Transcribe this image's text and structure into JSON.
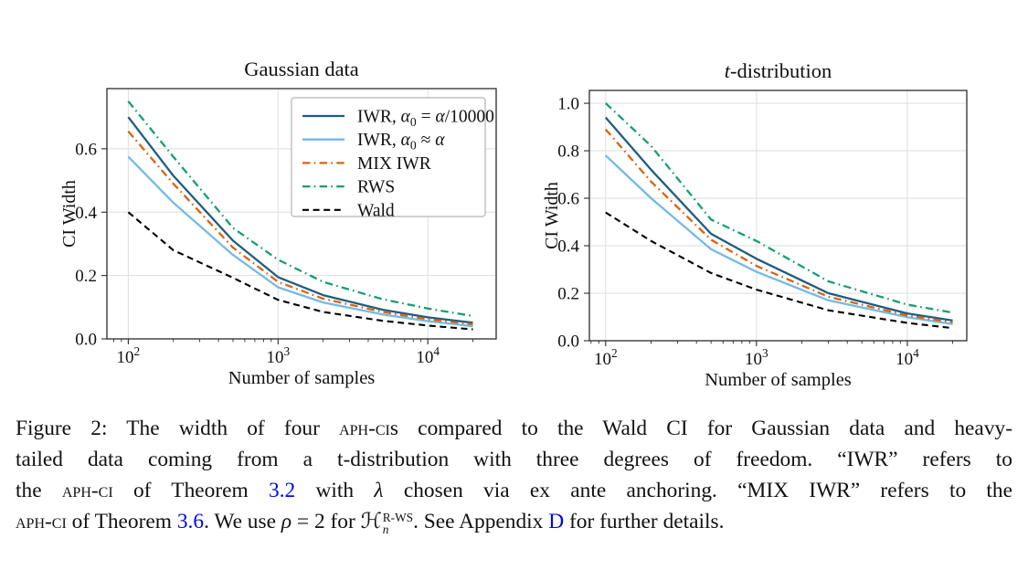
{
  "figure_label": "Figure 2",
  "caption": {
    "link_color": "#0008e6",
    "lines": [
      [
        {
          "t": "Figure 2: The width of four "
        },
        {
          "t": "aph-ci",
          "style": "sc"
        },
        {
          "t": "s compared to the Wald CI for Gaussian data and heavy-"
        }
      ],
      [
        {
          "t": "tailed data coming from a t-distribution with three degrees of freedom.  “IWR” refers to"
        }
      ],
      [
        {
          "t": "the "
        },
        {
          "t": "aph-ci",
          "style": "sc"
        },
        {
          "t": " of Theorem "
        },
        {
          "t": "3.2",
          "style": "link",
          "name": "theorem-3-2-link"
        },
        {
          "t": " with "
        },
        {
          "t": "λ",
          "style": "it"
        },
        {
          "t": " chosen via ex ante anchoring.  “MIX IWR” refers to the"
        }
      ],
      [
        {
          "t": "aph-ci",
          "style": "sc"
        },
        {
          "t": " of Theorem "
        },
        {
          "t": "3.6",
          "style": "link",
          "name": "theorem-3-6-link"
        },
        {
          "t": ". We use "
        },
        {
          "t": "ρ",
          "style": "it"
        },
        {
          "t": " = 2 for "
        },
        {
          "t": "ℋ"
        },
        {
          "t": "R-WS|n",
          "style": "stack"
        },
        {
          "t": ". See Appendix "
        },
        {
          "t": "D",
          "style": "link",
          "name": "appendix-d-link"
        },
        {
          "t": " for further details."
        }
      ]
    ]
  },
  "chart_data": [
    {
      "type": "line",
      "title_segments": [
        {
          "t": "Gaussian data"
        }
      ],
      "xlabel": "Number of samples",
      "ylabel": "CI Width",
      "x_scale": "log",
      "grid": true,
      "xlim": [
        72,
        28600
      ],
      "ylim": [
        0,
        0.79
      ],
      "xticks": [
        {
          "v": 100,
          "label": "10^2"
        },
        {
          "v": 1000,
          "label": "10^3"
        },
        {
          "v": 10000,
          "label": "10^4"
        }
      ],
      "yticks": [
        0.0,
        0.2,
        0.4,
        0.6
      ],
      "legend": {
        "show": true,
        "position": "upper right"
      },
      "x": [
        100,
        200,
        500,
        1000,
        2000,
        5000,
        10000,
        20000
      ],
      "series": [
        {
          "key": "iwr-dark",
          "dash": "solid",
          "color": "#1f5d80",
          "width": 2.3,
          "label_segments": [
            {
              "t": "IWR, "
            },
            {
              "t": "α",
              "it": 1
            },
            {
              "t": "0",
              "sub": 1
            },
            {
              "t": " = "
            },
            {
              "t": "α",
              "it": 1
            },
            {
              "t": "/10000"
            }
          ],
          "values": [
            0.7,
            0.515,
            0.31,
            0.195,
            0.138,
            0.092,
            0.068,
            0.051
          ]
        },
        {
          "key": "iwr-light",
          "dash": "solid",
          "color": "#74b9e9",
          "width": 2.3,
          "label_segments": [
            {
              "t": "IWR, "
            },
            {
              "t": "α",
              "it": 1
            },
            {
              "t": "0",
              "sub": 1
            },
            {
              "t": " ≈ "
            },
            {
              "t": "α",
              "it": 1
            }
          ],
          "values": [
            0.575,
            0.43,
            0.265,
            0.163,
            0.115,
            0.077,
            0.056,
            0.04
          ]
        },
        {
          "key": "mix-iwr",
          "dash": "dashdot",
          "color": "#d9640d",
          "width": 2.3,
          "label_segments": [
            {
              "t": "MIX IWR"
            }
          ],
          "values": [
            0.655,
            0.49,
            0.288,
            0.18,
            0.127,
            0.085,
            0.062,
            0.046
          ]
        },
        {
          "key": "rws",
          "dash": "dashdot",
          "color": "#189e73",
          "width": 2.3,
          "label_segments": [
            {
              "t": "RWS"
            }
          ],
          "values": [
            0.75,
            0.575,
            0.35,
            0.25,
            0.18,
            0.125,
            0.096,
            0.072
          ]
        },
        {
          "key": "wald",
          "dash": "dashed",
          "color": "#000000",
          "width": 2.1,
          "label_segments": [
            {
              "t": "Wald"
            }
          ],
          "values": [
            0.4,
            0.28,
            0.193,
            0.123,
            0.085,
            0.057,
            0.042,
            0.03
          ]
        }
      ]
    },
    {
      "type": "line",
      "title_segments": [
        {
          "t": "t",
          "it": 1
        },
        {
          "t": "-distribution"
        }
      ],
      "xlabel": "Number of samples",
      "ylabel": "CI Width",
      "x_scale": "log",
      "grid": true,
      "xlim": [
        78,
        24800
      ],
      "ylim": [
        0,
        1.054
      ],
      "xticks": [
        {
          "v": 100,
          "label": "10^2"
        },
        {
          "v": 1000,
          "label": "10^3"
        },
        {
          "v": 10000,
          "label": "10^4"
        }
      ],
      "yticks": [
        0.0,
        0.2,
        0.4,
        0.6,
        0.8,
        1.0
      ],
      "legend": {
        "show": false
      },
      "x": [
        100,
        200,
        500,
        1000,
        3000,
        10000,
        20000
      ],
      "series": [
        {
          "key": "iwr-dark",
          "dash": "solid",
          "color": "#1f5d80",
          "width": 2.3,
          "label_segments": [
            {
              "t": "IWR, "
            },
            {
              "t": "α",
              "it": 1
            },
            {
              "t": "0",
              "sub": 1
            },
            {
              "t": " = "
            },
            {
              "t": "α",
              "it": 1
            },
            {
              "t": "/10000"
            }
          ],
          "values": [
            0.94,
            0.72,
            0.45,
            0.345,
            0.2,
            0.115,
            0.085
          ]
        },
        {
          "key": "iwr-light",
          "dash": "solid",
          "color": "#74b9e9",
          "width": 2.3,
          "label_segments": [
            {
              "t": "IWR, "
            },
            {
              "t": "α",
              "it": 1
            },
            {
              "t": "0",
              "sub": 1
            },
            {
              "t": " ≈ "
            },
            {
              "t": "α",
              "it": 1
            }
          ],
          "values": [
            0.78,
            0.6,
            0.385,
            0.29,
            0.17,
            0.099,
            0.07
          ]
        },
        {
          "key": "mix-iwr",
          "dash": "dashdot",
          "color": "#d9640d",
          "width": 2.3,
          "label_segments": [
            {
              "t": "MIX IWR"
            }
          ],
          "values": [
            0.89,
            0.67,
            0.425,
            0.315,
            0.185,
            0.106,
            0.078
          ]
        },
        {
          "key": "rws",
          "dash": "dashdot",
          "color": "#189e73",
          "width": 2.3,
          "label_segments": [
            {
              "t": "RWS"
            }
          ],
          "values": [
            1.0,
            0.82,
            0.51,
            0.42,
            0.25,
            0.152,
            0.118
          ]
        },
        {
          "key": "wald",
          "dash": "dashed",
          "color": "#000000",
          "width": 2.1,
          "label_segments": [
            {
              "t": "Wald"
            }
          ],
          "values": [
            0.54,
            0.42,
            0.285,
            0.215,
            0.128,
            0.075,
            0.053
          ]
        }
      ]
    }
  ],
  "style": {
    "grid_color": "#dedede",
    "frame_color": "#2b2b2b",
    "legend_border": "#b3b3b3",
    "legend_bg": "#ffffff"
  }
}
